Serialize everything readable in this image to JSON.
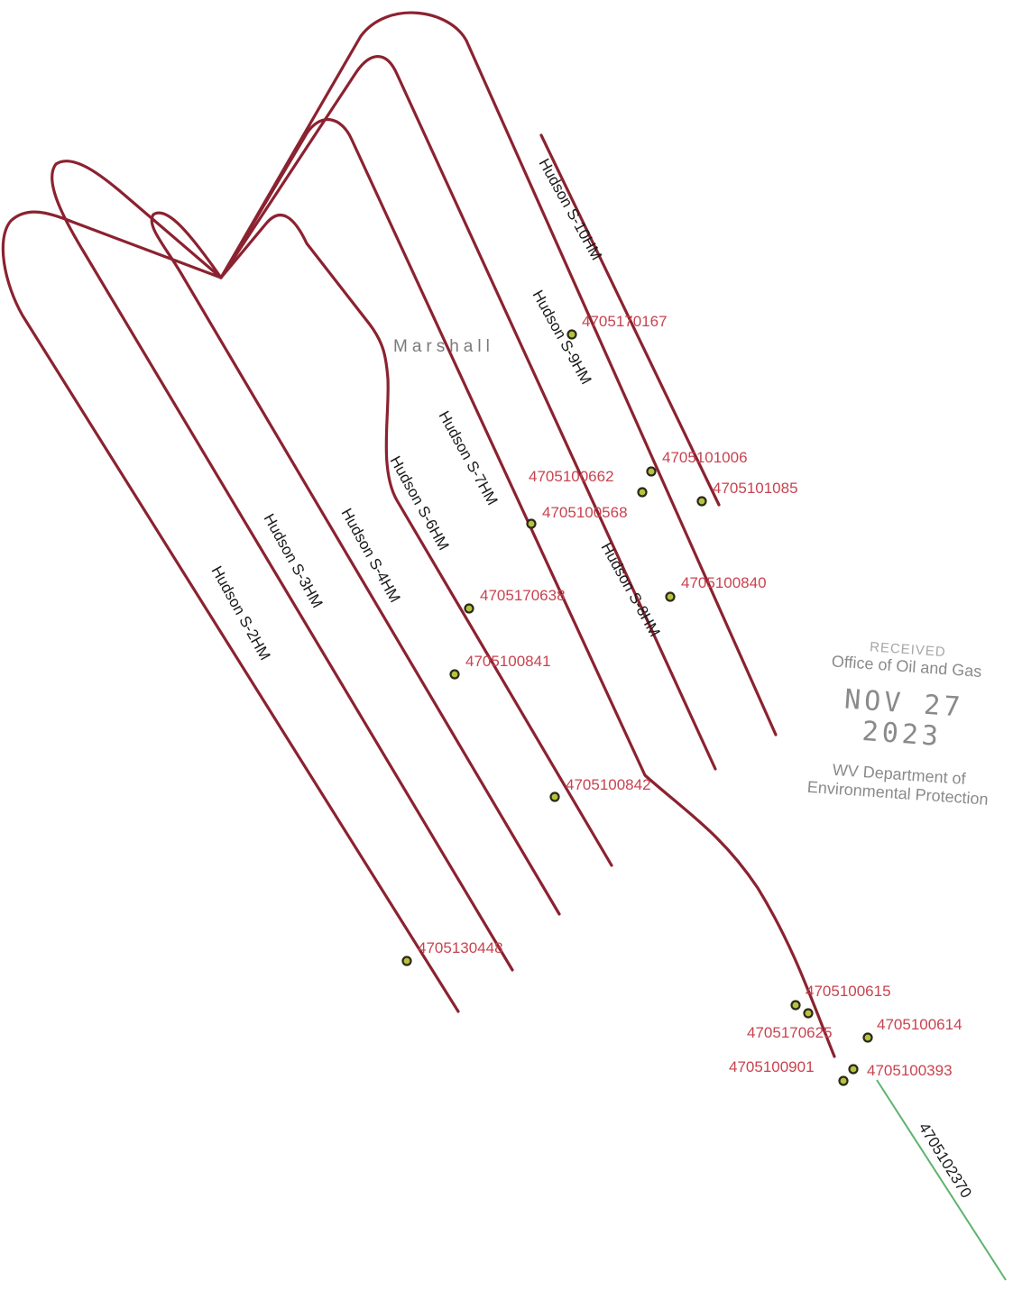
{
  "county_label": "Marshall",
  "laterals": [
    {
      "name": "Hudson S-2HM"
    },
    {
      "name": "Hudson S-3HM"
    },
    {
      "name": "Hudson S-4HM"
    },
    {
      "name": "Hudson S-6HM"
    },
    {
      "name": "Hudson S-7HM"
    },
    {
      "name": "Hudson S-8HM"
    },
    {
      "name": "Hudson S-9HM"
    },
    {
      "name": "Hudson S-10HM"
    }
  ],
  "wells": [
    {
      "api": "4705170167"
    },
    {
      "api": "4705101006"
    },
    {
      "api": "4705100662"
    },
    {
      "api": "4705101085"
    },
    {
      "api": "4705100568"
    },
    {
      "api": "4705100840"
    },
    {
      "api": "4705170638"
    },
    {
      "api": "4705100841"
    },
    {
      "api": "4705100842"
    },
    {
      "api": "4705130448"
    },
    {
      "api": "4705100615"
    },
    {
      "api": "4705170625"
    },
    {
      "api": "4705100614"
    },
    {
      "api": "4705100901"
    },
    {
      "api": "4705100393"
    }
  ],
  "offset_well": {
    "api": "4705102370"
  },
  "stamp": {
    "received": "RECEIVED",
    "office": "Office of Oil and Gas",
    "date": "NOV 27 2023",
    "department": "WV Department of",
    "environmental": "Environmental Protection"
  },
  "colors": {
    "lateral_line": "#8b2230",
    "offset_line": "#5fb36e",
    "api_label": "#c8434f",
    "well_marker": "#b9c23c"
  }
}
